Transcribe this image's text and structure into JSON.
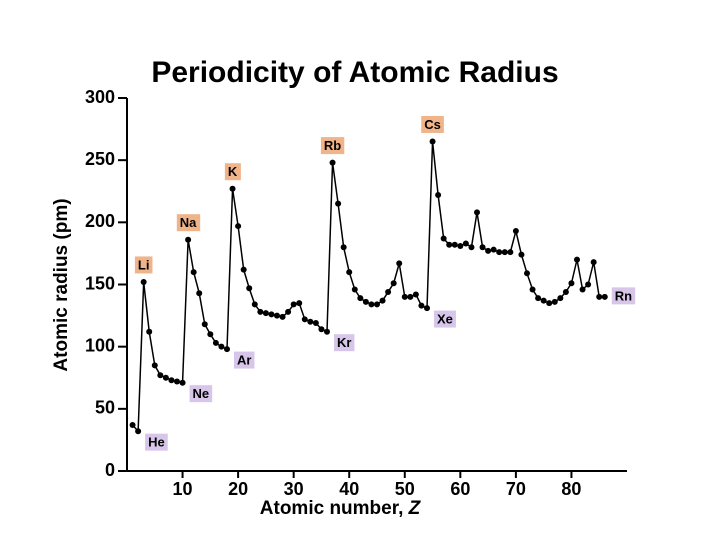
{
  "chart_data": {
    "type": "line",
    "title": "Periodicity of Atomic Radius",
    "xlabel": "Atomic number, ",
    "xlabel_var": "Z",
    "ylabel": "Atomic radius (pm)",
    "x": [
      1,
      2,
      3,
      4,
      5,
      6,
      7,
      8,
      9,
      10,
      11,
      12,
      13,
      14,
      15,
      16,
      17,
      18,
      19,
      20,
      21,
      22,
      23,
      24,
      25,
      26,
      27,
      28,
      29,
      30,
      31,
      32,
      33,
      34,
      35,
      36,
      37,
      38,
      39,
      40,
      41,
      42,
      43,
      44,
      45,
      46,
      47,
      48,
      49,
      50,
      51,
      52,
      53,
      54,
      55,
      56,
      57,
      58,
      59,
      60,
      61,
      62,
      63,
      64,
      65,
      66,
      67,
      68,
      69,
      70,
      71,
      72,
      73,
      74,
      75,
      76,
      77,
      78,
      79,
      80,
      81,
      82,
      83,
      84,
      85,
      86
    ],
    "values": [
      37,
      32,
      152,
      112,
      85,
      77,
      75,
      73,
      72,
      71,
      186,
      160,
      143,
      118,
      110,
      103,
      100,
      98,
      227,
      197,
      162,
      147,
      134,
      128,
      127,
      126,
      125,
      124,
      128,
      134,
      135,
      122,
      120,
      119,
      114,
      112,
      248,
      215,
      180,
      160,
      146,
      139,
      136,
      134,
      134,
      137,
      144,
      151,
      167,
      140,
      140,
      142,
      133,
      131,
      265,
      222,
      187,
      182,
      182,
      181,
      183,
      180,
      208,
      180,
      177,
      178,
      176,
      176,
      176,
      193,
      174,
      159,
      146,
      139,
      137,
      135,
      136,
      139,
      144,
      151,
      170,
      146,
      150,
      168,
      140,
      140
    ],
    "color": "#000000",
    "xlim": [
      0,
      90
    ],
    "xticks": [
      10,
      20,
      30,
      40,
      50,
      60,
      70,
      80
    ],
    "ylim": [
      0,
      300
    ],
    "yticks": [
      0,
      50,
      100,
      150,
      200,
      250,
      300
    ],
    "annotations": [
      {
        "text": "Li",
        "x": 3,
        "position": "above",
        "color": "#f0b48a"
      },
      {
        "text": "Na",
        "x": 11,
        "position": "above",
        "color": "#f0b48a"
      },
      {
        "text": "K",
        "x": 19,
        "position": "above",
        "color": "#f0b48a"
      },
      {
        "text": "Rb",
        "x": 37,
        "position": "above",
        "color": "#f0b48a"
      },
      {
        "text": "Cs",
        "x": 55,
        "position": "above",
        "color": "#f0b48a"
      },
      {
        "text": "He",
        "x": 2,
        "position": "below-right",
        "color": "#d7c6ea"
      },
      {
        "text": "Ne",
        "x": 10,
        "position": "below-right",
        "color": "#d7c6ea"
      },
      {
        "text": "Ar",
        "x": 18,
        "position": "below-right",
        "color": "#d7c6ea"
      },
      {
        "text": "Kr",
        "x": 36,
        "position": "below-right",
        "color": "#d7c6ea"
      },
      {
        "text": "Xe",
        "x": 54,
        "position": "below-right",
        "color": "#d7c6ea"
      },
      {
        "text": "Rn",
        "x": 86,
        "position": "right",
        "color": "#d7c6ea"
      }
    ]
  }
}
